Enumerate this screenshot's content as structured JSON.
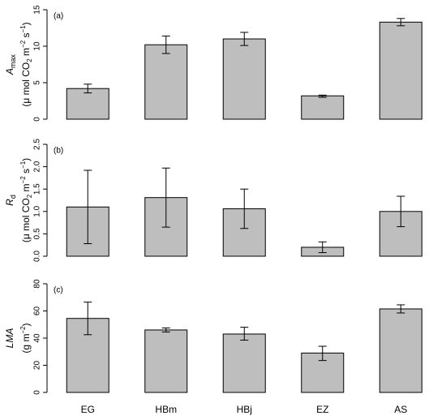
{
  "chart_data": [
    {
      "type": "bar",
      "panel_label": "(a)",
      "ylabel_symbol": "A",
      "ylabel_symbol_sub": "max",
      "ylabel_unit": [
        "(μ mol CO",
        "2",
        " m",
        "−2",
        " s",
        "−1",
        ")"
      ],
      "categories": [
        "EG",
        "HBm",
        "HBj",
        "EZ",
        "AS"
      ],
      "values": [
        4.2,
        10.2,
        11.0,
        3.2,
        13.3
      ],
      "error_low": [
        3.6,
        9.0,
        10.1,
        3.0,
        12.8
      ],
      "error_high": [
        4.8,
        11.4,
        11.9,
        3.3,
        13.8
      ],
      "ylim": [
        0,
        15
      ],
      "yticks": [
        "0",
        "5",
        "10",
        "15"
      ],
      "bar_color": "#bebebe"
    },
    {
      "type": "bar",
      "panel_label": "(b)",
      "ylabel_symbol": "R",
      "ylabel_symbol_sub": "d",
      "ylabel_unit": [
        "(μ mol CO",
        "2",
        " m",
        "−2",
        " s",
        "−1",
        ")"
      ],
      "categories": [
        "EG",
        "HBm",
        "HBj",
        "EZ",
        "AS"
      ],
      "values": [
        1.1,
        1.31,
        1.06,
        0.2,
        1.0
      ],
      "error_low": [
        0.28,
        0.65,
        0.62,
        0.08,
        0.66
      ],
      "error_high": [
        1.92,
        1.97,
        1.5,
        0.32,
        1.34
      ],
      "ylim": [
        0,
        2.5
      ],
      "yticks": [
        "0.0",
        "0.5",
        "1.0",
        "1.5",
        "2.0",
        "2.5"
      ],
      "bar_color": "#bebebe"
    },
    {
      "type": "bar",
      "panel_label": "(c)",
      "ylabel_symbol": "LMA",
      "ylabel_symbol_sub": "",
      "ylabel_unit": [
        "(g m",
        "−2",
        ")"
      ],
      "categories": [
        "EG",
        "HBm",
        "HBj",
        "EZ",
        "AS"
      ],
      "values": [
        54.5,
        46.0,
        43.0,
        29.0,
        61.5
      ],
      "error_low": [
        42.5,
        44.5,
        38.5,
        23.5,
        58.5
      ],
      "error_high": [
        66.5,
        47.5,
        48.0,
        34.0,
        64.5
      ],
      "ylim": [
        0,
        80
      ],
      "yticks": [
        "0",
        "20",
        "40",
        "60",
        "80"
      ],
      "bar_color": "#bebebe"
    }
  ]
}
